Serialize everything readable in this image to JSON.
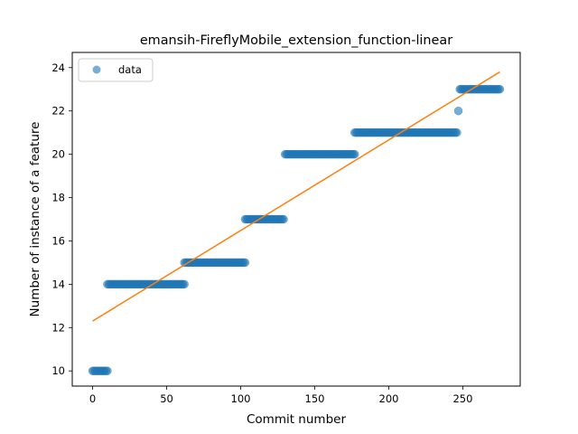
{
  "chart_data": {
    "type": "scatter",
    "title": "emansih-FireflyMobile_extension_function-linear",
    "xlabel": "Commit number",
    "ylabel": "Number of instance of a feature",
    "xlim": [
      -13.75,
      288.75
    ],
    "ylim": [
      9.3,
      24.7
    ],
    "xticks": [
      0,
      50,
      100,
      150,
      200,
      250
    ],
    "yticks": [
      10,
      12,
      14,
      16,
      18,
      20,
      22,
      24
    ],
    "grid": false,
    "legend": {
      "position": "top-left",
      "entries": [
        "data"
      ]
    },
    "series": [
      {
        "name": "data",
        "kind": "scatter",
        "color": "#1f77b4",
        "alpha": 0.6,
        "runs": [
          {
            "x_start": 0,
            "x_end": 10,
            "y": 10
          },
          {
            "x_start": 10,
            "x_end": 62,
            "y": 14
          },
          {
            "x_start": 62,
            "x_end": 103,
            "y": 15
          },
          {
            "x_start": 103,
            "x_end": 129,
            "y": 17
          },
          {
            "x_start": 130,
            "x_end": 177,
            "y": 20
          },
          {
            "x_start": 177,
            "x_end": 246,
            "y": 21
          },
          {
            "x_start": 247,
            "x_end": 247,
            "y": 22
          },
          {
            "x_start": 248,
            "x_end": 275,
            "y": 23
          }
        ]
      },
      {
        "name": "",
        "kind": "line",
        "color": "#ff7f0e",
        "x": [
          0,
          275
        ],
        "y": [
          12.3,
          23.8
        ]
      }
    ]
  }
}
